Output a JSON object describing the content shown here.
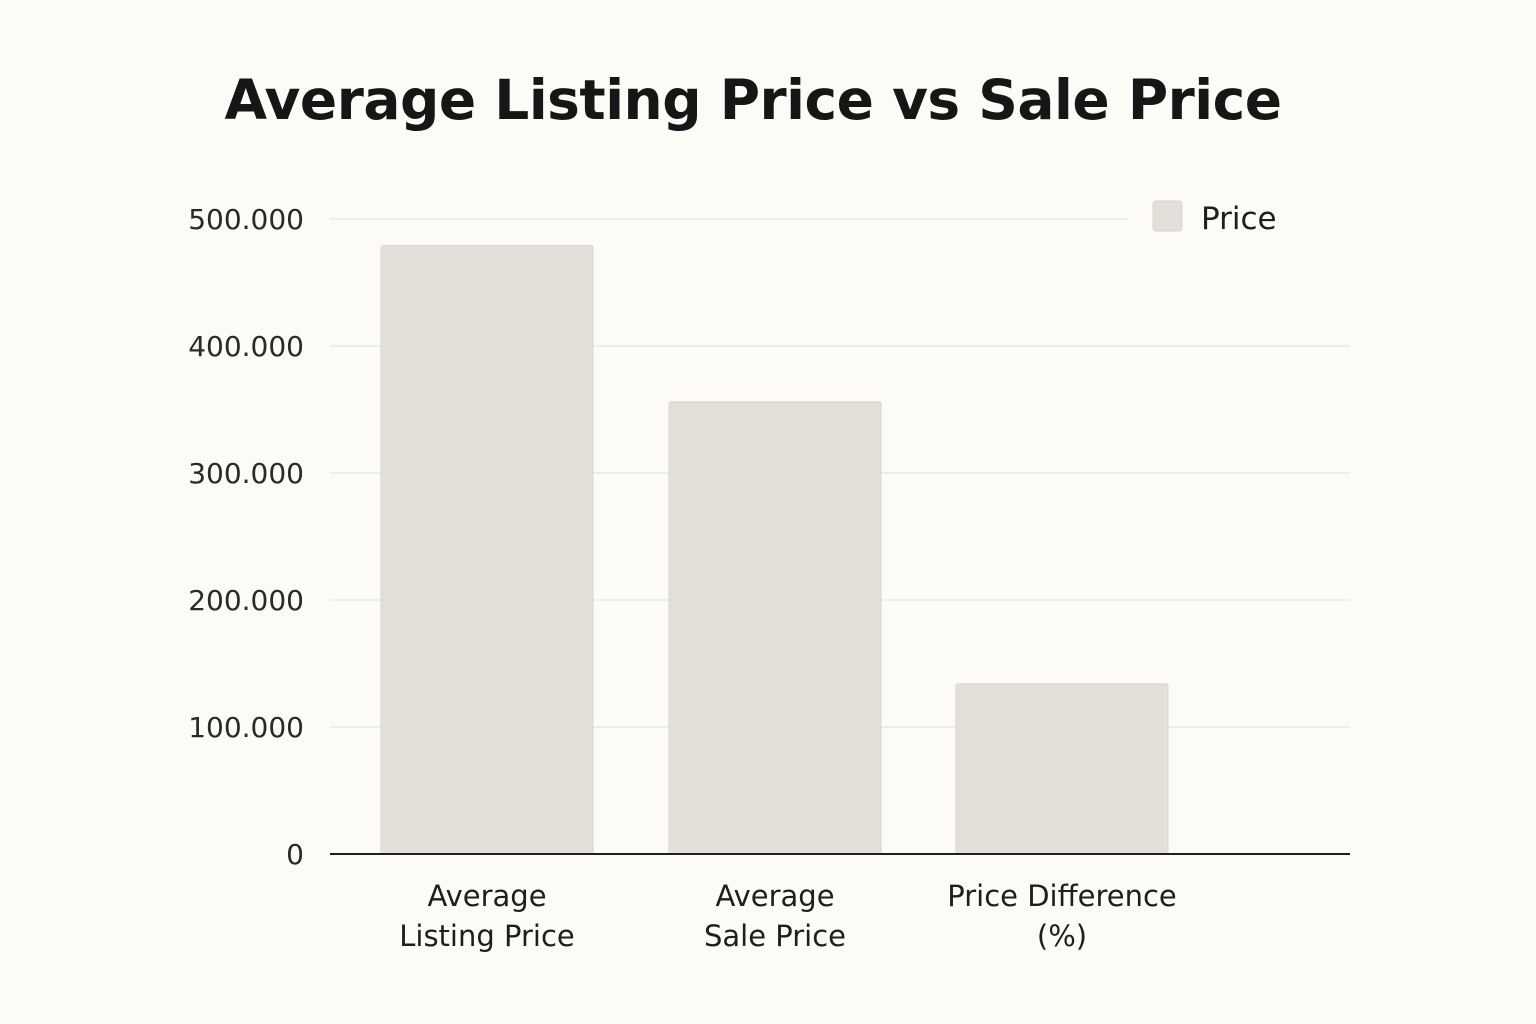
{
  "chart_data": {
    "type": "bar",
    "title": "Average Listing Price vs Sale Price",
    "xlabel": "",
    "ylabel": "",
    "categories": [
      [
        "Average",
        "Listing Price"
      ],
      [
        "Average",
        "Sale Price"
      ],
      [
        "Price Difference",
        "(%)"
      ]
    ],
    "series": [
      {
        "name": "Price",
        "values": [
          479000,
          356000,
          134000
        ],
        "color": "#e4dfd9"
      }
    ],
    "ylim": [
      0,
      500000
    ],
    "yticks": [
      0,
      100000,
      200000,
      300000,
      400000,
      500000
    ],
    "ytick_labels": [
      "0",
      "100.000",
      "200.000",
      "300.000",
      "400.000",
      "500.000"
    ],
    "grid": true,
    "legend": {
      "position": "top-right"
    },
    "colors": {
      "grid": "#e6e6e2",
      "axis": "#1f1f1f",
      "bar_outline": "#d9d4ce"
    }
  }
}
